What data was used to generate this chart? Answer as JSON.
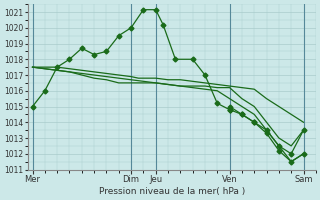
{
  "background_color": "#cce8e8",
  "plot_bg_color": "#cce8e8",
  "line_color": "#1a6b1a",
  "grid_color": "#aacccc",
  "xlabel_text": "Pression niveau de la mer( hPa )",
  "ylim": [
    1011,
    1021.5
  ],
  "yticks": [
    1011,
    1012,
    1013,
    1014,
    1015,
    1016,
    1017,
    1018,
    1019,
    1020,
    1021
  ],
  "vline_positions": [
    0,
    4.0,
    5.0,
    8.0,
    11.0
  ],
  "series": [
    {
      "x": [
        0,
        0.5,
        1.0,
        1.5,
        2.0,
        2.5,
        3.0,
        3.5,
        4.0,
        4.5,
        5.0,
        5.3,
        5.8,
        6.5,
        7.0,
        7.5,
        8.0
      ],
      "y": [
        1015.0,
        1016.0,
        1017.5,
        1018.0,
        1018.7,
        1018.3,
        1018.5,
        1019.5,
        1020.0,
        1021.15,
        1021.15,
        1020.2,
        1018.0,
        1018.0,
        1017.0,
        1015.2,
        1014.8
      ],
      "markers": true
    },
    {
      "x": [
        0,
        0.5,
        1.0,
        1.5,
        2.0,
        2.5,
        3.0,
        3.5,
        4.0,
        4.3,
        5.0,
        5.5,
        6.0,
        6.5,
        7.0,
        7.5,
        8.0,
        8.5,
        9.0,
        9.5,
        10.0,
        10.5,
        11.0
      ],
      "y": [
        1017.5,
        1017.5,
        1017.5,
        1017.4,
        1017.3,
        1017.2,
        1017.1,
        1017.0,
        1016.9,
        1016.8,
        1016.8,
        1016.7,
        1016.7,
        1016.6,
        1016.5,
        1016.4,
        1016.3,
        1016.2,
        1016.1,
        1015.5,
        1015.0,
        1014.5,
        1014.0
      ],
      "markers": false
    },
    {
      "x": [
        0,
        0.5,
        1.0,
        1.5,
        2.0,
        2.5,
        3.0,
        3.5,
        4.0,
        4.5,
        5.0,
        5.5,
        6.0,
        6.5,
        7.0,
        7.5,
        8.0,
        8.5,
        9.0,
        9.5,
        10.0,
        10.5,
        11.0
      ],
      "y": [
        1017.5,
        1017.4,
        1017.3,
        1017.2,
        1017.1,
        1017.0,
        1016.9,
        1016.8,
        1016.7,
        1016.6,
        1016.5,
        1016.4,
        1016.3,
        1016.3,
        1016.3,
        1016.2,
        1016.2,
        1015.5,
        1015.0,
        1014.0,
        1013.0,
        1012.5,
        1013.5
      ],
      "markers": false
    },
    {
      "x": [
        0,
        0.5,
        1.0,
        1.5,
        2.0,
        2.5,
        3.0,
        3.5,
        4.0,
        4.5,
        5.0,
        5.5,
        6.0,
        6.5,
        7.0,
        7.5,
        8.0,
        8.5,
        9.0,
        9.5,
        10.0,
        10.5,
        11.0
      ],
      "y": [
        1017.5,
        1017.4,
        1017.3,
        1017.2,
        1017.0,
        1016.8,
        1016.7,
        1016.5,
        1016.5,
        1016.5,
        1016.5,
        1016.4,
        1016.3,
        1016.2,
        1016.1,
        1016.0,
        1015.5,
        1015.0,
        1014.5,
        1013.5,
        1012.5,
        1011.5,
        1012.0
      ],
      "markers": false
    },
    {
      "x": [
        8.0,
        8.5,
        9.0,
        9.5,
        10.0,
        10.5,
        11.0
      ],
      "y": [
        1014.8,
        1014.5,
        1014.0,
        1013.5,
        1012.5,
        1012.0,
        1013.5
      ],
      "markers": true
    },
    {
      "x": [
        8.0,
        8.5,
        9.0,
        9.5,
        10.0,
        10.5,
        11.0
      ],
      "y": [
        1015.0,
        1014.5,
        1014.0,
        1013.3,
        1012.2,
        1011.5,
        1012.0
      ],
      "markers": true
    }
  ]
}
